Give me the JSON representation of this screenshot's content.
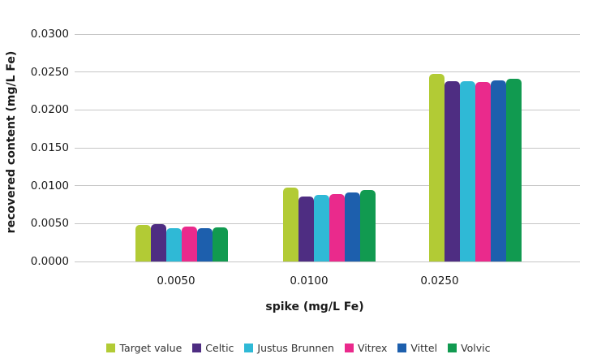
{
  "chart_data": {
    "type": "bar",
    "title": "",
    "categories": [
      "0.0050",
      "0.0100",
      "0.0250"
    ],
    "series": [
      {
        "name": "Target value",
        "color": "#b2cb35",
        "values": [
          0.0048,
          0.0098,
          0.0248
        ]
      },
      {
        "name": "Celtic",
        "color": "#4e2d82",
        "values": [
          0.0049,
          0.0086,
          0.0238
        ]
      },
      {
        "name": "Justus Brunnen",
        "color": "#2fb9d6",
        "values": [
          0.0044,
          0.0088,
          0.0238
        ]
      },
      {
        "name": "Vitrex",
        "color": "#ea2a8c",
        "values": [
          0.0046,
          0.0089,
          0.0237
        ]
      },
      {
        "name": "Vittel",
        "color": "#1d5fad",
        "values": [
          0.0044,
          0.0091,
          0.0239
        ]
      },
      {
        "name": "Volvic",
        "color": "#119a50",
        "values": [
          0.0045,
          0.0094,
          0.0241
        ]
      }
    ],
    "xlabel": "spike (mg/L Fe)",
    "ylabel": "recovered content (mg/L Fe)",
    "ylim": [
      0,
      0.03
    ],
    "ytick_step": 0.005,
    "ytick_labels": [
      "0.0000",
      "0.0050",
      "0.0100",
      "0.0150",
      "0.0200",
      "0.0250",
      "0.0300"
    ],
    "grid": true,
    "gridline_color": "#c6c6c6",
    "legend_position": "bottom"
  }
}
